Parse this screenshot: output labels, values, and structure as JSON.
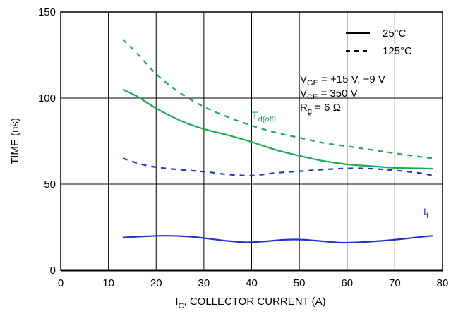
{
  "chart_data": {
    "type": "line",
    "xlabel": {
      "main": "I",
      "sub": "C",
      "rest": ", COLLECTOR CURRENT (A)"
    },
    "ylabel": "TIME (ns)",
    "xlim": [
      0,
      80
    ],
    "ylim": [
      0,
      150
    ],
    "xticks": [
      "0",
      "10",
      "20",
      "30",
      "40",
      "50",
      "60",
      "70",
      "80"
    ],
    "yticks": [
      "0",
      "50",
      "100",
      "150"
    ],
    "grid": true,
    "legend": {
      "placement": "top-right",
      "items": [
        {
          "label": "25°C",
          "style": "solid"
        },
        {
          "label": "125°C",
          "style": "dashed"
        }
      ]
    },
    "conditions": [
      {
        "main": "V",
        "sub": "GE",
        "rest": " = +15 V, −9 V"
      },
      {
        "main": "V",
        "sub": "CE",
        "rest": " = 350 V"
      },
      {
        "main": "R",
        "sub": "g",
        "rest": " = 6 Ω"
      }
    ],
    "series_labels": [
      {
        "main": "T",
        "sub": "d(off)",
        "color": "#1aaa55",
        "at": [
          40,
          88
        ]
      },
      {
        "main": "t",
        "sub": "f",
        "color": "#2233cc",
        "at": [
          76,
          32
        ]
      }
    ],
    "series": [
      {
        "group": "Td(off)",
        "temp": "25°C",
        "style": "solid",
        "color": "#1aaa55",
        "x": [
          13,
          16,
          20,
          25,
          30,
          35,
          40,
          45,
          50,
          55,
          60,
          65,
          70,
          75,
          78
        ],
        "y": [
          105,
          101,
          94,
          87,
          82,
          78.5,
          74.5,
          70,
          66.5,
          63.5,
          61.5,
          60.5,
          59.5,
          59.2,
          59
        ]
      },
      {
        "group": "Td(off)",
        "temp": "125°C",
        "style": "dashed",
        "color": "#1aaa55",
        "x": [
          13,
          16,
          20,
          25,
          30,
          35,
          40,
          45,
          50,
          55,
          60,
          65,
          70,
          75,
          78
        ],
        "y": [
          134,
          126,
          114,
          103,
          95,
          89,
          84,
          80,
          77,
          74,
          72,
          70,
          68,
          66,
          65
        ]
      },
      {
        "group": "tf",
        "temp": "25°C",
        "style": "solid",
        "color": "#2233cc",
        "x": [
          13,
          18,
          22,
          27,
          31,
          35,
          39,
          43,
          47,
          51,
          55,
          59,
          63,
          67,
          71,
          75,
          78
        ],
        "y": [
          19,
          19.7,
          20,
          19.5,
          18.3,
          17,
          16.2,
          16.8,
          17.7,
          17.7,
          16.8,
          16,
          16.3,
          17,
          18,
          19.2,
          20
        ]
      },
      {
        "group": "tf",
        "temp": "125°C",
        "style": "dashed",
        "color": "#2233cc",
        "x": [
          13,
          17,
          21,
          26,
          31,
          35,
          40,
          45,
          50,
          55,
          60,
          65,
          70,
          75,
          78
        ],
        "y": [
          65,
          61.5,
          59.5,
          58.2,
          57,
          55.6,
          55,
          56.5,
          57.5,
          58.5,
          59.2,
          59,
          58,
          56.5,
          55
        ]
      }
    ]
  }
}
